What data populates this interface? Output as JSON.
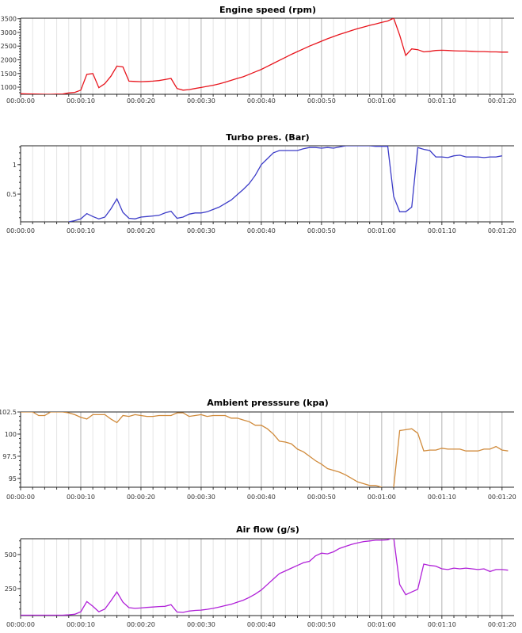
{
  "chart_data": [
    {
      "type": "line",
      "title": "Engine speed (rpm)",
      "color": "#e8141c",
      "ylim": [
        740,
        3520
      ],
      "yticks": [
        1000,
        1500,
        2000,
        2500,
        3000,
        3500
      ],
      "ytick_labels": [
        "1000",
        "1500",
        "2000",
        "2500",
        "3000",
        "3500"
      ],
      "xlim": [
        0,
        82
      ],
      "xticks": [
        0,
        10,
        20,
        30,
        40,
        50,
        60,
        70,
        80
      ],
      "xtick_labels": [
        "00:00:00",
        "00:00:10",
        "00:00:20",
        "00:00:30",
        "00:00:40",
        "00:00:50",
        "00:01:00",
        "00:01:10",
        "00:01:20"
      ],
      "x_start": 0,
      "values": [
        760,
        755,
        750,
        745,
        740,
        740,
        745,
        750,
        790,
        810,
        890,
        1470,
        1500,
        980,
        1130,
        1400,
        1770,
        1740,
        1220,
        1210,
        1200,
        1210,
        1220,
        1240,
        1280,
        1320,
        950,
        890,
        910,
        950,
        990,
        1030,
        1070,
        1120,
        1180,
        1250,
        1320,
        1380,
        1470,
        1560,
        1650,
        1760,
        1870,
        1980,
        2090,
        2200,
        2300,
        2400,
        2500,
        2590,
        2680,
        2770,
        2850,
        2930,
        3000,
        3070,
        3140,
        3200,
        3260,
        3310,
        3370,
        3420,
        3520,
        2900,
        2160,
        2400,
        2370,
        2290,
        2310,
        2340,
        2350,
        2340,
        2330,
        2320,
        2320,
        2310,
        2300,
        2300,
        2290,
        2290,
        2280,
        2280
      ]
    },
    {
      "type": "line",
      "title": "Turbo pres. (Bar)",
      "color": "#3c3cc8",
      "ylim": [
        0.03,
        1.32
      ],
      "yticks": [
        0.5,
        1
      ],
      "ytick_labels": [
        "0.5",
        "1"
      ],
      "xlim": [
        0,
        82
      ],
      "xticks": [
        0,
        10,
        20,
        30,
        40,
        50,
        60,
        70,
        80
      ],
      "xtick_labels": [
        "00:00:00",
        "00:00:10",
        "00:00:20",
        "00:00:30",
        "00:00:40",
        "00:00:50",
        "00:01:00",
        "00:01:10",
        "00:01:20"
      ],
      "x_start": 8,
      "values": [
        0.03,
        0.05,
        0.08,
        0.17,
        0.12,
        0.08,
        0.11,
        0.25,
        0.42,
        0.19,
        0.09,
        0.08,
        0.11,
        0.12,
        0.13,
        0.14,
        0.18,
        0.21,
        0.09,
        0.11,
        0.16,
        0.18,
        0.18,
        0.2,
        0.24,
        0.28,
        0.34,
        0.4,
        0.49,
        0.58,
        0.68,
        0.82,
        1.0,
        1.1,
        1.2,
        1.24,
        1.24,
        1.24,
        1.24,
        1.27,
        1.29,
        1.29,
        1.28,
        1.29,
        1.28,
        1.3,
        1.32,
        1.32,
        1.32,
        1.32,
        1.32,
        1.31,
        1.31,
        1.31,
        0.46,
        0.2,
        0.2,
        0.28,
        1.29,
        1.26,
        1.24,
        1.13,
        1.13,
        1.12,
        1.15,
        1.16,
        1.13,
        1.13,
        1.13,
        1.12,
        1.13,
        1.13,
        1.15
      ]
    },
    {
      "type": "line",
      "title": "Ambient presssure (kpa)",
      "color": "#d08a3a",
      "ylim": [
        94,
        102.5
      ],
      "yticks": [
        95,
        97.5,
        100,
        102.5
      ],
      "ytick_labels": [
        "95",
        "97.5",
        "100",
        "102.5"
      ],
      "xlim": [
        0,
        82
      ],
      "xticks": [
        0,
        10,
        20,
        30,
        40,
        50,
        60,
        70,
        80
      ],
      "xtick_labels": [
        "00:00:00",
        "00:00:10",
        "00:00:20",
        "00:00:30",
        "00:00:40",
        "00:00:50",
        "00:01:00",
        "00:01:10",
        "00:01:20"
      ],
      "x_start": 0,
      "values": [
        102.5,
        102.5,
        102.5,
        102.1,
        102.1,
        102.5,
        102.5,
        102.5,
        102.4,
        102.2,
        101.9,
        101.7,
        102.2,
        102.2,
        102.2,
        101.7,
        101.3,
        102.1,
        102.0,
        102.2,
        102.1,
        102.0,
        102.0,
        102.1,
        102.1,
        102.1,
        102.4,
        102.4,
        102.0,
        102.1,
        102.2,
        102.0,
        102.1,
        102.1,
        102.1,
        101.8,
        101.8,
        101.6,
        101.4,
        101.0,
        101.0,
        100.6,
        100.0,
        99.2,
        99.1,
        98.9,
        98.3,
        98.0,
        97.5,
        97.0,
        96.6,
        96.1,
        95.9,
        95.7,
        95.4,
        95.0,
        94.6,
        94.4,
        94.2,
        94.2,
        94.0,
        92.0,
        94.0,
        100.4,
        100.5,
        100.6,
        100.1,
        98.1,
        98.2,
        98.2,
        98.4,
        98.3,
        98.3,
        98.3,
        98.1,
        98.1,
        98.1,
        98.3,
        98.3,
        98.6,
        98.2,
        98.1
      ]
    },
    {
      "type": "line",
      "title": "Air flow (g/s)",
      "color": "#b020d8",
      "ylim": [
        52,
        616
      ],
      "yticks": [
        250,
        500
      ],
      "ytick_labels": [
        "250",
        "500"
      ],
      "xlim": [
        0,
        82
      ],
      "xticks": [
        0,
        10,
        20,
        30,
        40,
        50,
        60,
        70,
        80
      ],
      "xtick_labels": [
        "00:00:00",
        "00:00:10",
        "00:00:20",
        "00:00:30",
        "00:00:40",
        "00:00:50",
        "00:01:00",
        "00:01:10",
        "00:01:20"
      ],
      "x_start": 0,
      "values": [
        55,
        55,
        55,
        55,
        55,
        55,
        55,
        55,
        58,
        62,
        80,
        155,
        120,
        80,
        100,
        160,
        225,
        150,
        110,
        105,
        108,
        112,
        115,
        118,
        120,
        132,
        78,
        75,
        85,
        90,
        92,
        98,
        105,
        115,
        125,
        135,
        150,
        165,
        185,
        210,
        240,
        280,
        320,
        360,
        380,
        400,
        420,
        440,
        450,
        490,
        510,
        505,
        520,
        545,
        560,
        575,
        585,
        595,
        600,
        605,
        605,
        608,
        625,
        280,
        205,
        225,
        245,
        430,
        420,
        415,
        395,
        390,
        400,
        395,
        400,
        395,
        390,
        395,
        375,
        390,
        390,
        385
      ]
    }
  ]
}
